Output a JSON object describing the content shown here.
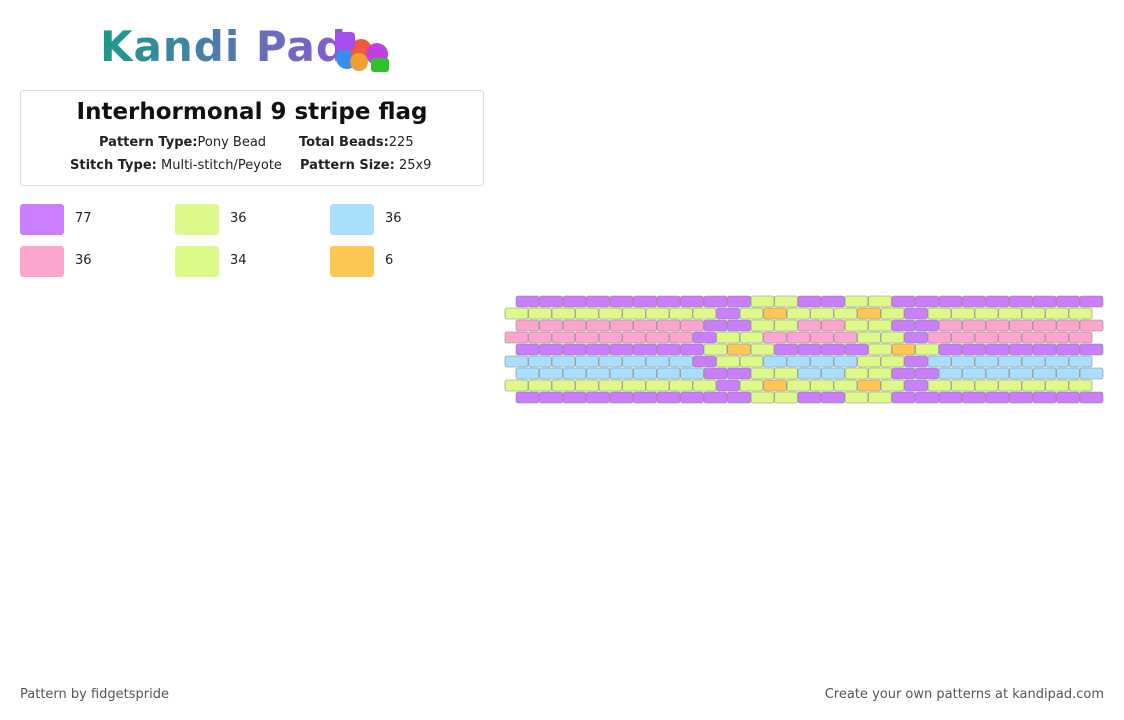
{
  "header": {
    "logo": "Kandi Pad"
  },
  "card": {
    "title": "Interhormonal 9 stripe flag",
    "fields": [
      {
        "label": "Pattern Type:",
        "value": "Pony Bead"
      },
      {
        "label": "Total Beads:",
        "value": "225"
      },
      {
        "label": "Stitch Type:",
        "value": "Multi-stitch/Peyote"
      },
      {
        "label": "Pattern Size:",
        "value": "25x9"
      }
    ]
  },
  "palette": [
    {
      "color": "#c97ffc",
      "count": "77"
    },
    {
      "color": "#ddf98a",
      "count": "36"
    },
    {
      "color": "#a9defc",
      "count": "36"
    },
    {
      "color": "#fca6cf",
      "count": "36"
    },
    {
      "color": "#dcfa88",
      "count": "34"
    },
    {
      "color": "#fcc853",
      "count": "6"
    }
  ],
  "footer": {
    "left": "Pattern by fidgetspride",
    "right": "Create your own patterns at kandipad.com"
  }
}
